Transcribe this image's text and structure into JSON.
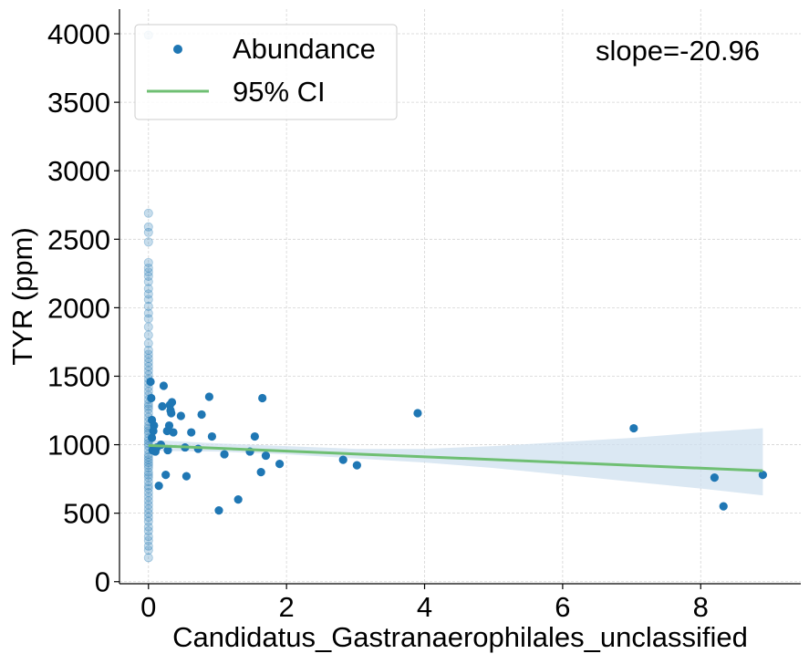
{
  "chart_data": {
    "type": "scatter",
    "xlabel": "Candidatus_Gastranaerophilales_unclassified",
    "ylabel": "TYR (ppm)",
    "xlim": [
      -0.42,
      9.45
    ],
    "ylim": [
      -15,
      4180
    ],
    "xticks": [
      0,
      2,
      4,
      6,
      8
    ],
    "yticks": [
      0,
      500,
      1000,
      1500,
      2000,
      2500,
      3000,
      3500,
      4000
    ],
    "grid": true,
    "legend": {
      "placement": "top-left",
      "entries": [
        {
          "label": "Abundance",
          "kind": "marker",
          "color": "#1f77b4"
        },
        {
          "label": "95% CI",
          "kind": "line",
          "color": "#6fbf73"
        }
      ]
    },
    "annotation": "slope=-20.96",
    "colors": {
      "points": "#1f77b4",
      "fit": "#6fbf73",
      "band": "#cfe0ef"
    },
    "fit_line": {
      "x": [
        0,
        8.9
      ],
      "y": [
        995,
        810
      ]
    },
    "ci_band": {
      "x": [
        0,
        1,
        2,
        3,
        4,
        5,
        6,
        7,
        8,
        8.9
      ],
      "lower": [
        955,
        950,
        930,
        900,
        870,
        830,
        780,
        730,
        680,
        630
      ],
      "upper": [
        1035,
        1010,
        990,
        970,
        970,
        990,
        1020,
        1050,
        1090,
        1120
      ]
    },
    "x_zero_values": [
      175,
      230,
      260,
      300,
      330,
      370,
      400,
      440,
      470,
      500,
      530,
      560,
      590,
      620,
      650,
      680,
      700,
      730,
      760,
      780,
      800,
      830,
      850,
      870,
      890,
      910,
      930,
      960,
      990,
      1010,
      1030,
      1050,
      1080,
      1100,
      1120,
      1140,
      1170,
      1200,
      1230,
      1260,
      1280,
      1300,
      1330,
      1360,
      1390,
      1420,
      1450,
      1480,
      1510,
      1540,
      1570,
      1600,
      1630,
      1660,
      1690,
      1740,
      1800,
      1860,
      1920,
      1960,
      2010,
      2060,
      2100,
      2140,
      2190,
      2230,
      2260,
      2290,
      2330,
      2480,
      2550,
      2590,
      2690,
      3990
    ],
    "series": [
      {
        "name": "Abundance",
        "points": [
          {
            "x": 0.03,
            "y": 1460
          },
          {
            "x": 0.04,
            "y": 1340
          },
          {
            "x": 0.05,
            "y": 1180
          },
          {
            "x": 0.05,
            "y": 1050
          },
          {
            "x": 0.06,
            "y": 960
          },
          {
            "x": 0.07,
            "y": 1100
          },
          {
            "x": 0.08,
            "y": 1140
          },
          {
            "x": 0.1,
            "y": 950
          },
          {
            "x": 0.12,
            "y": 980
          },
          {
            "x": 0.15,
            "y": 700
          },
          {
            "x": 0.18,
            "y": 1000
          },
          {
            "x": 0.2,
            "y": 1280
          },
          {
            "x": 0.22,
            "y": 1430
          },
          {
            "x": 0.25,
            "y": 780
          },
          {
            "x": 0.27,
            "y": 1100
          },
          {
            "x": 0.28,
            "y": 960
          },
          {
            "x": 0.3,
            "y": 1140
          },
          {
            "x": 0.31,
            "y": 1290
          },
          {
            "x": 0.32,
            "y": 1250
          },
          {
            "x": 0.33,
            "y": 1230
          },
          {
            "x": 0.34,
            "y": 1310
          },
          {
            "x": 0.36,
            "y": 1090
          },
          {
            "x": 0.47,
            "y": 1210
          },
          {
            "x": 0.53,
            "y": 980
          },
          {
            "x": 0.55,
            "y": 770
          },
          {
            "x": 0.62,
            "y": 1090
          },
          {
            "x": 0.72,
            "y": 970
          },
          {
            "x": 0.77,
            "y": 1220
          },
          {
            "x": 0.88,
            "y": 1350
          },
          {
            "x": 0.92,
            "y": 1060
          },
          {
            "x": 1.02,
            "y": 520
          },
          {
            "x": 1.1,
            "y": 930
          },
          {
            "x": 1.3,
            "y": 600
          },
          {
            "x": 1.47,
            "y": 950
          },
          {
            "x": 1.54,
            "y": 1060
          },
          {
            "x": 1.63,
            "y": 800
          },
          {
            "x": 1.65,
            "y": 1340
          },
          {
            "x": 1.7,
            "y": 920
          },
          {
            "x": 1.9,
            "y": 860
          },
          {
            "x": 2.82,
            "y": 890
          },
          {
            "x": 3.02,
            "y": 850
          },
          {
            "x": 3.9,
            "y": 1230
          },
          {
            "x": 7.03,
            "y": 1120
          },
          {
            "x": 8.2,
            "y": 760
          },
          {
            "x": 8.33,
            "y": 550
          },
          {
            "x": 8.9,
            "y": 780
          }
        ]
      }
    ]
  }
}
